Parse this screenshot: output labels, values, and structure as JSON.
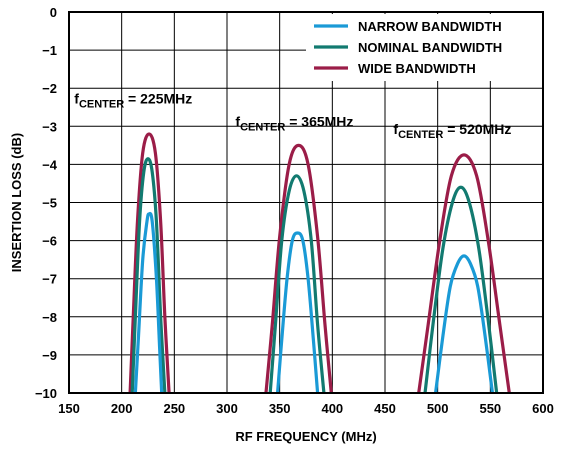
{
  "chart_data": {
    "type": "line",
    "xlabel": "RF FREQUENCY (MHz)",
    "ylabel": "INSERTION LOSS (dB)",
    "xlim": [
      150,
      600
    ],
    "ylim": [
      -10,
      0
    ],
    "xticks": [
      150,
      200,
      250,
      300,
      350,
      400,
      450,
      500,
      550,
      600
    ],
    "yticks": [
      0,
      -1,
      -2,
      -3,
      -4,
      -5,
      -6,
      -7,
      -8,
      -9,
      -10
    ],
    "grid": true,
    "legend_position": "top-right",
    "series": [
      {
        "name": "NARROW BANDWIDTH",
        "color": "#1a9ad6",
        "curves": [
          {
            "center": 226,
            "peak": -5.3,
            "x": [
              213,
              216,
              220,
              224,
              226,
              229,
              233,
              236,
              238
            ],
            "y": [
              -10.0,
              -8.5,
              -6.5,
              -5.5,
              -5.3,
              -5.5,
              -7.0,
              -8.8,
              -10.0
            ]
          },
          {
            "center": 367,
            "peak": -5.8,
            "x": [
              348,
              352,
              357,
              362,
              367,
              372,
              377,
              382,
              386
            ],
            "y": [
              -10.0,
              -8.6,
              -7.0,
              -6.0,
              -5.8,
              -6.0,
              -7.0,
              -8.6,
              -10.0
            ]
          },
          {
            "center": 525,
            "peak": -6.4,
            "x": [
              498,
              505,
              512,
              519,
              525,
              531,
              538,
              545,
              552
            ],
            "y": [
              -10.0,
              -8.5,
              -7.2,
              -6.6,
              -6.4,
              -6.6,
              -7.2,
              -8.5,
              -10.0
            ]
          }
        ]
      },
      {
        "name": "NOMINAL BANDWIDTH",
        "color": "#127a70",
        "curves": [
          {
            "center": 225,
            "peak": -3.85,
            "x": [
              210,
              213,
              217,
              221,
              225,
              229,
              233,
              237,
              241
            ],
            "y": [
              -10.0,
              -8.0,
              -5.5,
              -4.2,
              -3.85,
              -4.2,
              -5.5,
              -8.0,
              -10.0
            ]
          },
          {
            "center": 366,
            "peak": -4.3,
            "x": [
              341,
              346,
              352,
              359,
              366,
              373,
              380,
              386,
              392
            ],
            "y": [
              -10.0,
              -8.2,
              -6.0,
              -4.7,
              -4.3,
              -4.7,
              -6.0,
              -8.2,
              -10.0
            ]
          },
          {
            "center": 522,
            "peak": -4.6,
            "x": [
              488,
              496,
              505,
              514,
              522,
              530,
              539,
              548,
              556
            ],
            "y": [
              -10.0,
              -8.1,
              -6.2,
              -5.0,
              -4.6,
              -5.0,
              -6.2,
              -8.1,
              -10.0
            ]
          }
        ]
      },
      {
        "name": "WIDE BANDWIDTH",
        "color": "#9b1d48",
        "curves": [
          {
            "center": 226,
            "peak": -3.2,
            "x": [
              208,
              211,
              215,
              220,
              226,
              232,
              237,
              241,
              245
            ],
            "y": [
              -10.0,
              -8.0,
              -5.5,
              -3.7,
              -3.2,
              -3.7,
              -5.5,
              -8.0,
              -10.0
            ]
          },
          {
            "center": 368,
            "peak": -3.5,
            "x": [
              337,
              343,
              350,
              359,
              368,
              377,
              386,
              393,
              399
            ],
            "y": [
              -10.0,
              -8.2,
              -5.9,
              -4.0,
              -3.5,
              -4.0,
              -5.9,
              -8.2,
              -10.0
            ]
          },
          {
            "center": 525,
            "peak": -3.75,
            "x": [
              482,
              491,
              502,
              513,
              525,
              537,
              548,
              559,
              568
            ],
            "y": [
              -10.0,
              -8.2,
              -6.0,
              -4.3,
              -3.75,
              -4.3,
              -6.0,
              -8.2,
              -10.0
            ]
          }
        ]
      }
    ],
    "annotations": [
      {
        "symbol": "f",
        "subscript": "CENTER",
        "text": " = 225MHz",
        "x": 155,
        "y": -2.4
      },
      {
        "symbol": "f",
        "subscript": "CENTER",
        "text": " = 365MHz",
        "x": 308,
        "y": -3.0
      },
      {
        "symbol": "f",
        "subscript": "CENTER",
        "text": " = 520MHz",
        "x": 458,
        "y": -3.2
      }
    ]
  }
}
